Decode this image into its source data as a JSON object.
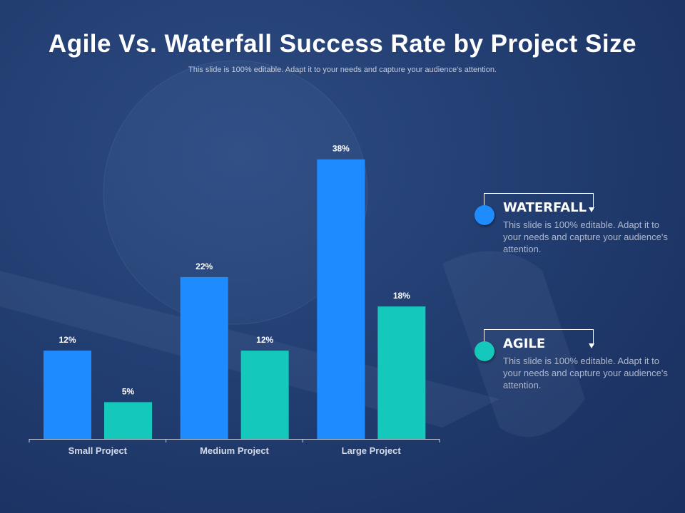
{
  "title": "Agile Vs. Waterfall Success Rate by Project Size",
  "subtitle": "This slide is 100% editable. Adapt it to your needs and capture your audience's attention.",
  "legend": [
    {
      "name": "WATERFALL",
      "color": "#1e8bff",
      "description": "This slide is 100% editable. Adapt it to your needs and capture your audience's attention."
    },
    {
      "name": "AGILE",
      "color": "#14c8bb",
      "description": "This slide is 100% editable. Adapt it to your needs and capture your audience's attention."
    }
  ],
  "chart_data": {
    "type": "bar",
    "categories": [
      "Small Project",
      "Medium Project",
      "Large Project"
    ],
    "series": [
      {
        "name": "WATERFALL",
        "values": [
          12,
          22,
          38
        ],
        "labels": [
          "12%",
          "22%",
          "38%"
        ],
        "color": "#1e8bff"
      },
      {
        "name": "AGILE",
        "values": [
          5,
          12,
          18
        ],
        "labels": [
          "5%",
          "12%",
          "18%"
        ],
        "color": "#14c8bb"
      }
    ],
    "ylim": [
      0,
      40
    ],
    "grid": false,
    "legend_position": "right"
  }
}
